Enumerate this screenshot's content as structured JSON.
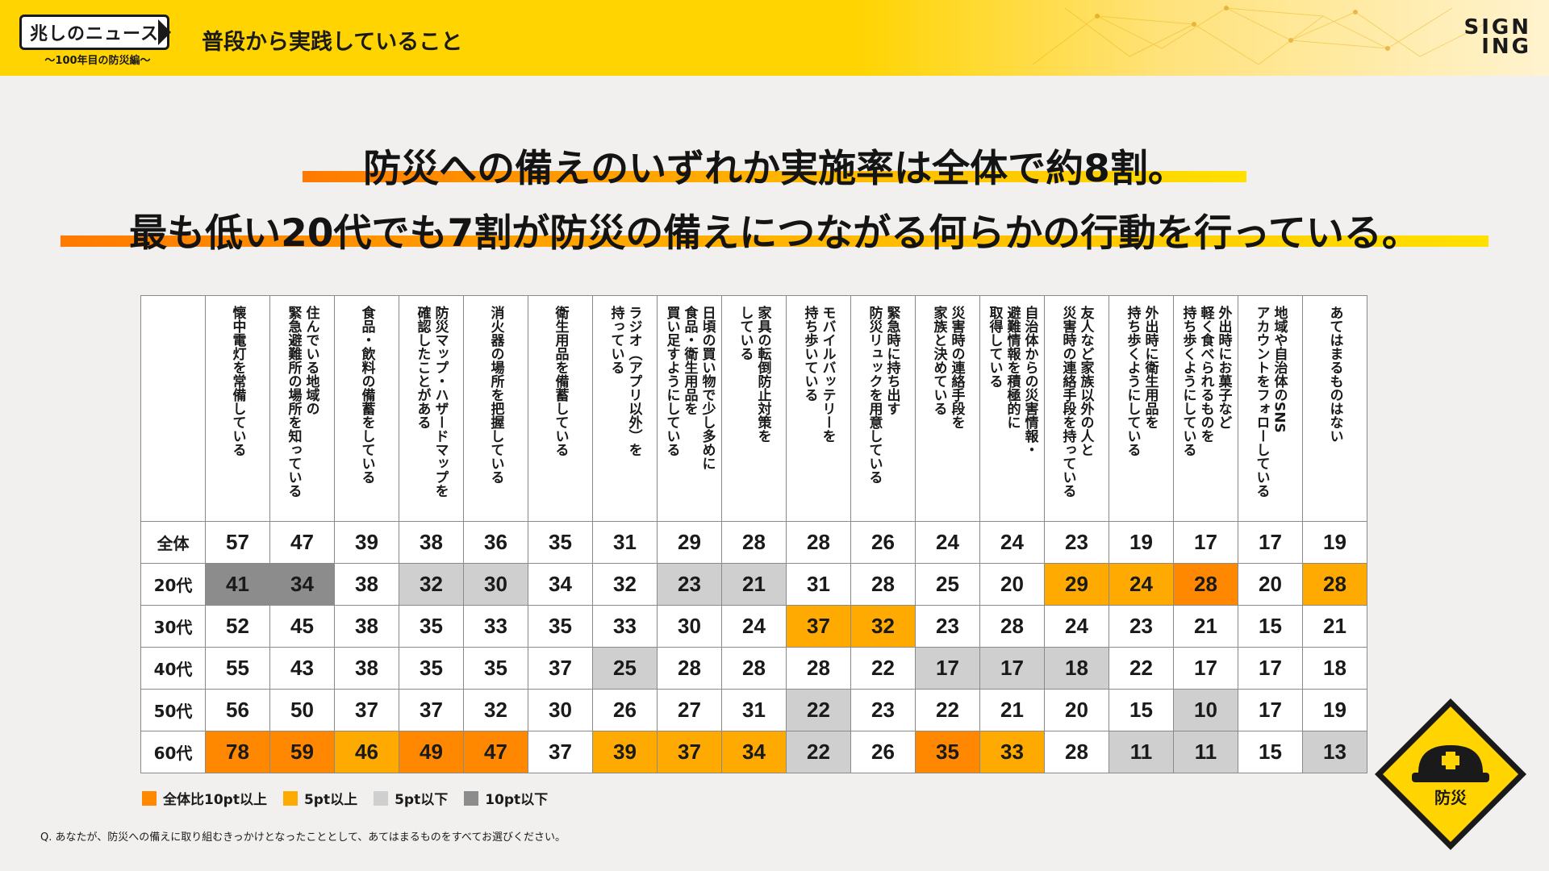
{
  "header": {
    "logo": "兆しのニュース",
    "logo_sub": "〜100年目の防災編〜",
    "title": "普段から実践していること",
    "brand_line1": "SIGN",
    "brand_line2": "ING"
  },
  "headline": {
    "line1": "防災への備えのいずれか実施率は全体で約8割。",
    "line2": "最も低い20代でも7割が防災の備えにつながる何らかの行動を行っている。"
  },
  "table": {
    "columns": [
      "懐中電灯を常備している",
      "住んでいる地域の\n緊急避難所の場所を知っている",
      "食品・飲料の備蓄をしている",
      "防災マップ・ハザードマップを\n確認したことがある",
      "消火器の場所を把握している",
      "衛生用品を備蓄している",
      "ラジオ（アプリ以外）を\n持っている",
      "日頃の買い物で少し多めに\n食品・衛生用品を\n買い足すようにしている",
      "家具の転倒防止対策を\nしている",
      "モバイルバッテリーを\n持ち歩いている",
      "緊急時に持ち出す\n防災リュックを用意している",
      "災害時の連絡手段を\n家族と決めている",
      "自治体からの災害情報・\n避難情報を積極的に\n取得している",
      "友人など家族以外の人と\n災害時の連絡手段を持っている",
      "外出時に衛生用品を\n持ち歩くようにしている",
      "外出時にお菓子など\n軽く食べられるものを\n持ち歩くようにしている",
      "地域や自治体のSNS\nアカウントをフォローしている",
      "あてはまるものはない"
    ],
    "rows": [
      {
        "label": "全体",
        "values": [
          57,
          47,
          39,
          38,
          36,
          35,
          31,
          29,
          28,
          28,
          26,
          24,
          24,
          23,
          19,
          17,
          17,
          19
        ],
        "colors": [
          "",
          "",
          "",
          "",
          "",
          "",
          "",
          "",
          "",
          "",
          "",
          "",
          "",
          "",
          "",
          "",
          "",
          ""
        ]
      },
      {
        "label": "20代",
        "values": [
          41,
          34,
          38,
          32,
          30,
          34,
          32,
          23,
          21,
          31,
          28,
          25,
          20,
          29,
          24,
          28,
          20,
          28
        ],
        "colors": [
          "d",
          "d",
          "",
          "l",
          "l",
          "",
          "",
          "l",
          "l",
          "",
          "",
          "",
          "",
          "y",
          "y",
          "o",
          "",
          "y"
        ]
      },
      {
        "label": "30代",
        "values": [
          52,
          45,
          38,
          35,
          33,
          35,
          33,
          30,
          24,
          37,
          32,
          23,
          28,
          24,
          23,
          21,
          15,
          21
        ],
        "colors": [
          "",
          "",
          "",
          "",
          "",
          "",
          "",
          "",
          "",
          "y",
          "y",
          "",
          "",
          "",
          "",
          "",
          "",
          ""
        ]
      },
      {
        "label": "40代",
        "values": [
          55,
          43,
          38,
          35,
          35,
          37,
          25,
          28,
          28,
          28,
          22,
          17,
          17,
          18,
          22,
          17,
          17,
          18
        ],
        "colors": [
          "",
          "",
          "",
          "",
          "",
          "",
          "l",
          "",
          "",
          "",
          "",
          "l",
          "l",
          "l",
          "",
          "",
          "",
          ""
        ]
      },
      {
        "label": "50代",
        "values": [
          56,
          50,
          37,
          37,
          32,
          30,
          26,
          27,
          31,
          22,
          23,
          22,
          21,
          20,
          15,
          10,
          17,
          19
        ],
        "colors": [
          "",
          "",
          "",
          "",
          "",
          "",
          "",
          "",
          "",
          "l",
          "",
          "",
          "",
          "",
          "",
          "l",
          "",
          ""
        ]
      },
      {
        "label": "60代",
        "values": [
          78,
          59,
          46,
          49,
          47,
          37,
          39,
          37,
          34,
          22,
          26,
          35,
          33,
          28,
          11,
          11,
          15,
          13
        ],
        "colors": [
          "o",
          "o",
          "y",
          "o",
          "o",
          "",
          "y",
          "y",
          "y",
          "l",
          "",
          "o",
          "y",
          "",
          "l",
          "l",
          "",
          "l"
        ]
      }
    ]
  },
  "legend": [
    {
      "label": "全体比10pt以上",
      "color": "#ff8800"
    },
    {
      "label": "5pt以上",
      "color": "#ffaa00"
    },
    {
      "label": "5pt以下",
      "color": "#cfcfcf"
    },
    {
      "label": "10pt以下",
      "color": "#8c8c8c"
    }
  ],
  "footnote": "Q. あなたが、防災への備えに取り組むきっかけとなったこととして、あてはまるものをすべてお選びください。",
  "badge": {
    "label": "防災"
  }
}
